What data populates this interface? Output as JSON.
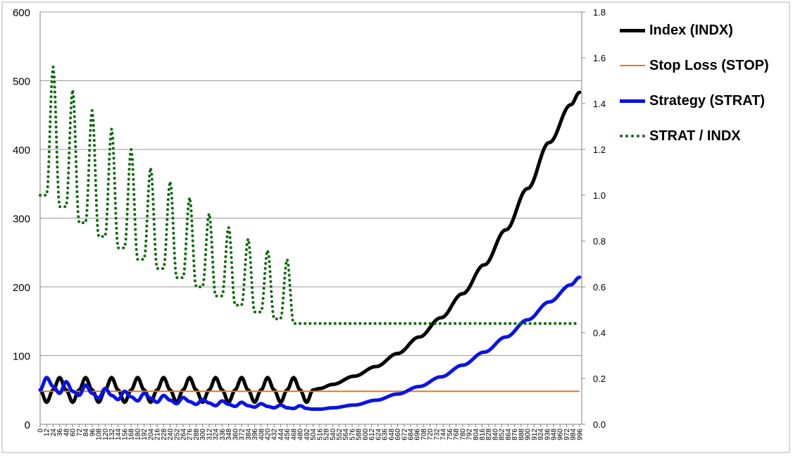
{
  "chart_data": {
    "type": "line",
    "x": {
      "min": 0,
      "max": 1000,
      "tick_labels": [
        0,
        12,
        24,
        36,
        48,
        60,
        72,
        84,
        96,
        108,
        120,
        132,
        144,
        156,
        168,
        180,
        192,
        204,
        216,
        228,
        240,
        252,
        264,
        276,
        288,
        300,
        312,
        324,
        336,
        348,
        360,
        372,
        384,
        396,
        408,
        420,
        432,
        444,
        456,
        468,
        480,
        492,
        504,
        516,
        528,
        540,
        552,
        564,
        576,
        588,
        600,
        612,
        624,
        636,
        648,
        660,
        672,
        684,
        696,
        708,
        720,
        732,
        744,
        756,
        768,
        780,
        792,
        804,
        816,
        828,
        840,
        852,
        864,
        876,
        888,
        900,
        912,
        924,
        936,
        948,
        960,
        972,
        984,
        996
      ]
    },
    "y_left": {
      "min": 0,
      "max": 600,
      "ticks": [
        0,
        100,
        200,
        300,
        400,
        500,
        600
      ]
    },
    "y_right": {
      "min": 0,
      "max": 1.8,
      "ticks": [
        "0.0",
        "0.2",
        "0.4",
        "0.6",
        "0.8",
        "1.0",
        "1.2",
        "1.4",
        "1.6",
        "1.8"
      ]
    },
    "grid": true,
    "legend_position": "right",
    "series": [
      {
        "name": "Index (INDX)",
        "axis": "left",
        "color": "#000000",
        "style": "solid",
        "points": [
          [
            0,
            50
          ],
          [
            12,
            32
          ],
          [
            24,
            50
          ],
          [
            36,
            68
          ],
          [
            48,
            50
          ],
          [
            60,
            32
          ],
          [
            72,
            50
          ],
          [
            84,
            68
          ],
          [
            96,
            50
          ],
          [
            108,
            32
          ],
          [
            120,
            50
          ],
          [
            132,
            68
          ],
          [
            144,
            50
          ],
          [
            156,
            32
          ],
          [
            168,
            50
          ],
          [
            180,
            68
          ],
          [
            192,
            50
          ],
          [
            204,
            32
          ],
          [
            216,
            50
          ],
          [
            228,
            68
          ],
          [
            240,
            50
          ],
          [
            252,
            32
          ],
          [
            264,
            50
          ],
          [
            276,
            68
          ],
          [
            288,
            50
          ],
          [
            300,
            32
          ],
          [
            312,
            50
          ],
          [
            324,
            68
          ],
          [
            336,
            50
          ],
          [
            348,
            32
          ],
          [
            360,
            50
          ],
          [
            372,
            68
          ],
          [
            384,
            50
          ],
          [
            396,
            32
          ],
          [
            408,
            50
          ],
          [
            420,
            68
          ],
          [
            432,
            50
          ],
          [
            444,
            32
          ],
          [
            456,
            50
          ],
          [
            468,
            68
          ],
          [
            480,
            50
          ],
          [
            492,
            32
          ],
          [
            504,
            50
          ],
          [
            516,
            52
          ],
          [
            540,
            58
          ],
          [
            580,
            70
          ],
          [
            620,
            84
          ],
          [
            660,
            103
          ],
          [
            700,
            127
          ],
          [
            740,
            155
          ],
          [
            780,
            190
          ],
          [
            820,
            232
          ],
          [
            860,
            283
          ],
          [
            900,
            343
          ],
          [
            940,
            410
          ],
          [
            980,
            465
          ],
          [
            996,
            483
          ]
        ]
      },
      {
        "name": "Stop Loss (STOP)",
        "axis": "left",
        "color": "#E07A1F",
        "style": "solid",
        "points": [
          [
            0,
            48
          ],
          [
            996,
            48
          ]
        ]
      },
      {
        "name": "Strategy (STRAT)",
        "axis": "left",
        "color": "#0A14E6",
        "style": "solid",
        "points": [
          [
            0,
            50
          ],
          [
            12,
            68
          ],
          [
            24,
            55
          ],
          [
            36,
            45
          ],
          [
            48,
            62
          ],
          [
            60,
            48
          ],
          [
            72,
            42
          ],
          [
            84,
            57
          ],
          [
            96,
            45
          ],
          [
            108,
            38
          ],
          [
            120,
            52
          ],
          [
            132,
            42
          ],
          [
            144,
            36
          ],
          [
            156,
            48
          ],
          [
            168,
            40
          ],
          [
            180,
            34
          ],
          [
            192,
            45
          ],
          [
            204,
            38
          ],
          [
            216,
            32
          ],
          [
            228,
            42
          ],
          [
            240,
            35
          ],
          [
            252,
            30
          ],
          [
            264,
            39
          ],
          [
            276,
            33
          ],
          [
            288,
            29
          ],
          [
            300,
            36
          ],
          [
            312,
            31
          ],
          [
            324,
            27
          ],
          [
            336,
            34
          ],
          [
            348,
            29
          ],
          [
            360,
            26
          ],
          [
            372,
            32
          ],
          [
            384,
            27
          ],
          [
            396,
            25
          ],
          [
            408,
            30
          ],
          [
            420,
            26
          ],
          [
            432,
            24
          ],
          [
            444,
            28
          ],
          [
            456,
            24
          ],
          [
            468,
            23
          ],
          [
            480,
            27
          ],
          [
            492,
            23
          ],
          [
            504,
            22
          ],
          [
            516,
            22
          ],
          [
            540,
            24
          ],
          [
            580,
            28
          ],
          [
            620,
            35
          ],
          [
            660,
            44
          ],
          [
            700,
            55
          ],
          [
            740,
            69
          ],
          [
            780,
            86
          ],
          [
            820,
            105
          ],
          [
            860,
            127
          ],
          [
            900,
            152
          ],
          [
            940,
            178
          ],
          [
            980,
            203
          ],
          [
            996,
            214
          ]
        ]
      },
      {
        "name": "STRAT / INDX",
        "axis": "right",
        "color": "#0B6B0B",
        "style": "dotted",
        "points": [
          [
            0,
            1.0
          ],
          [
            12,
            1.0
          ],
          [
            24,
            1.56
          ],
          [
            36,
            0.95
          ],
          [
            48,
            0.95
          ],
          [
            60,
            1.46
          ],
          [
            72,
            0.88
          ],
          [
            84,
            0.88
          ],
          [
            96,
            1.37
          ],
          [
            108,
            0.82
          ],
          [
            120,
            0.82
          ],
          [
            132,
            1.29
          ],
          [
            144,
            0.77
          ],
          [
            156,
            0.77
          ],
          [
            168,
            1.2
          ],
          [
            180,
            0.72
          ],
          [
            192,
            0.72
          ],
          [
            204,
            1.12
          ],
          [
            216,
            0.68
          ],
          [
            228,
            0.68
          ],
          [
            240,
            1.06
          ],
          [
            252,
            0.64
          ],
          [
            264,
            0.64
          ],
          [
            276,
            0.99
          ],
          [
            288,
            0.6
          ],
          [
            300,
            0.6
          ],
          [
            312,
            0.92
          ],
          [
            324,
            0.56
          ],
          [
            336,
            0.56
          ],
          [
            348,
            0.86
          ],
          [
            360,
            0.52
          ],
          [
            372,
            0.52
          ],
          [
            384,
            0.81
          ],
          [
            396,
            0.49
          ],
          [
            408,
            0.49
          ],
          [
            420,
            0.76
          ],
          [
            432,
            0.46
          ],
          [
            444,
            0.46
          ],
          [
            456,
            0.72
          ],
          [
            468,
            0.44
          ],
          [
            480,
            0.44
          ],
          [
            996,
            0.44
          ]
        ]
      }
    ]
  },
  "legend": {
    "items": [
      {
        "label": "Index (INDX)"
      },
      {
        "label": "Stop Loss (STOP)"
      },
      {
        "label": "Strategy (STRAT)"
      },
      {
        "label": "STRAT / INDX"
      }
    ]
  }
}
